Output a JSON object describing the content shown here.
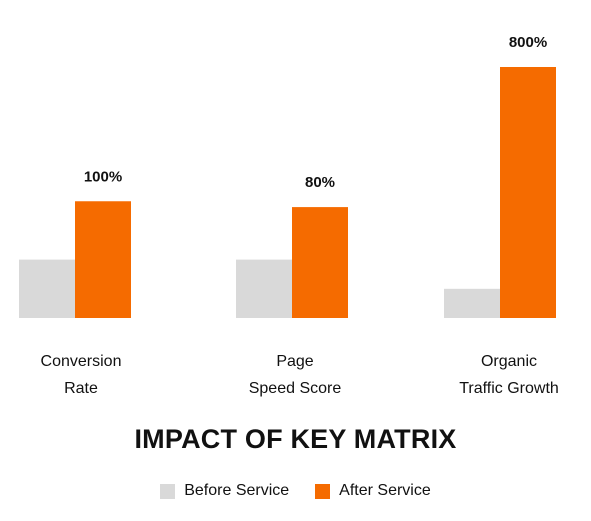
{
  "chart_data": {
    "type": "bar",
    "title": "IMPACT OF KEY MATRIX",
    "categories": [
      [
        "Conversion",
        "Rate"
      ],
      [
        "Page",
        "Speed Score"
      ],
      [
        "Organic",
        "Traffic Growth"
      ]
    ],
    "series": [
      {
        "name": "Before Service",
        "color": "#d9d9d9",
        "values": [
          1,
          1,
          0.5
        ]
      },
      {
        "name": "After Service",
        "color": "#f56b00",
        "values": [
          2,
          1.9,
          4.3
        ]
      }
    ],
    "data_labels": [
      "100%",
      "80%",
      "800%"
    ],
    "legend": "bottom-center",
    "grid": false,
    "ylim": [
      0,
      4.3
    ]
  }
}
